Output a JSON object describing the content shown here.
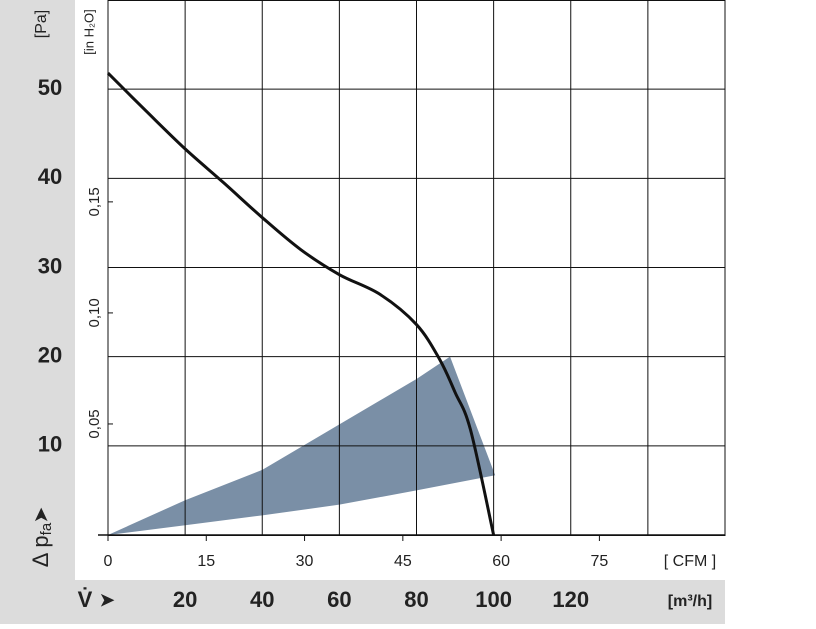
{
  "chart_data": {
    "type": "line",
    "ylabel": {
      "main": "Δ p",
      "sub": "fa"
    },
    "yunit": "[Pa]",
    "xlabel": "V̇",
    "xunit": "[m³/h]",
    "x2unit": "[ CFM ]",
    "y2unit": "[in H₂O]",
    "xlim": [
      0,
      160
    ],
    "xticks": [
      20,
      40,
      60,
      80,
      100,
      120
    ],
    "ylim": [
      0,
      60
    ],
    "yticks": [
      10,
      20,
      30,
      40,
      50
    ],
    "x2lim": [
      0,
      94.17
    ],
    "x2ticks": [
      0,
      15,
      30,
      45,
      60,
      75
    ],
    "y2lim": [
      0,
      0.2409
    ],
    "y2ticks": [
      {
        "value": 0.05,
        "label": "0,05"
      },
      {
        "value": 0.1,
        "label": "0,10"
      },
      {
        "value": 0.15,
        "label": "0,15"
      }
    ],
    "grid": true,
    "series": [
      {
        "color": "#111111",
        "x": [
          0,
          10,
          20,
          30,
          40,
          50,
          60,
          70.5,
          80,
          86,
          90,
          94,
          100
        ],
        "values": [
          51.8,
          47.5,
          43.3,
          39.5,
          35.6,
          32,
          29.2,
          27,
          23.6,
          19.7,
          16,
          11.8,
          0
        ]
      }
    ],
    "area": {
      "color": "#7a8fa6",
      "upper": {
        "x": [
          0,
          20,
          40,
          60,
          80,
          88.7
        ],
        "values": [
          0,
          3.9,
          7.3,
          12.4,
          17.5,
          20
        ]
      },
      "lower": {
        "x": [
          0,
          20,
          40,
          60,
          80,
          100.4
        ],
        "values": [
          0,
          1.1,
          2.2,
          3.4,
          5,
          6.7
        ]
      }
    }
  }
}
